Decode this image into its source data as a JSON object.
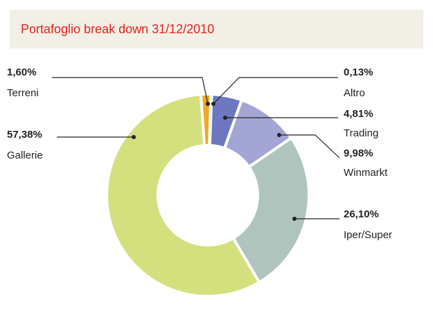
{
  "chart_data": {
    "type": "donut",
    "title": "Portafoglio break down 31/12/2010",
    "categories": [
      "Terreni",
      "Altro",
      "Trading",
      "Winmarkt",
      "Iper/Super",
      "Gallerie"
    ],
    "values": [
      1.6,
      0.13,
      4.81,
      9.98,
      26.1,
      57.38
    ],
    "value_labels": [
      "1,60%",
      "0,13%",
      "4,81%",
      "9,98%",
      "26,10%",
      "57,38%"
    ],
    "colors": [
      "#f5a623",
      "#5b62ad",
      "#6e78c0",
      "#a3a6d4",
      "#b0c4be",
      "#d4e07e"
    ]
  }
}
